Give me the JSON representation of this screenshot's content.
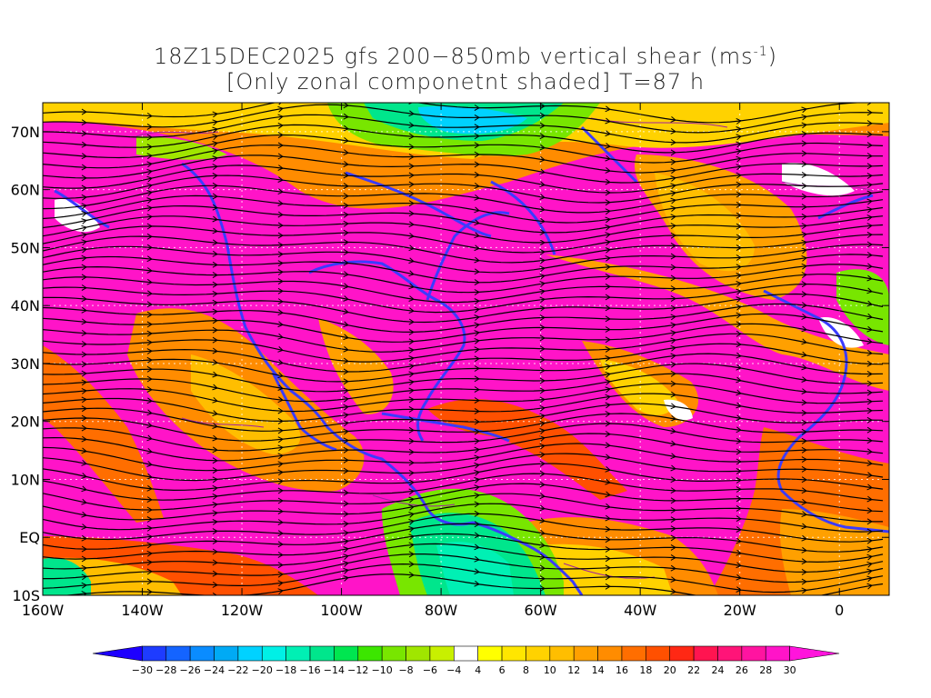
{
  "title": {
    "line1_prefix": "18Z15DEC2025 gfs 200−850mb vertical shear (ms",
    "line1_sup": "-1",
    "line1_suffix": ")",
    "line2": "[Only zonal componetnt shaded] T=87 h"
  },
  "map": {
    "lon_range": [
      -160,
      10
    ],
    "lat_range": [
      -10,
      75
    ],
    "lat_ticks": [
      {
        "value": 70,
        "label": "70N"
      },
      {
        "value": 60,
        "label": "60N"
      },
      {
        "value": 50,
        "label": "50N"
      },
      {
        "value": 40,
        "label": "40N"
      },
      {
        "value": 30,
        "label": "30N"
      },
      {
        "value": 20,
        "label": "20N"
      },
      {
        "value": 10,
        "label": "10N"
      },
      {
        "value": 0,
        "label": "EQ"
      },
      {
        "value": -10,
        "label": "10S"
      }
    ],
    "lon_ticks": [
      {
        "value": -160,
        "label": "160W"
      },
      {
        "value": -140,
        "label": "140W"
      },
      {
        "value": -120,
        "label": "120W"
      },
      {
        "value": -100,
        "label": "100W"
      },
      {
        "value": -80,
        "label": "80W"
      },
      {
        "value": -60,
        "label": "60W"
      },
      {
        "value": -40,
        "label": "40W"
      },
      {
        "value": -20,
        "label": "20W"
      },
      {
        "value": 0,
        "label": "0"
      }
    ],
    "coastline_color": "#3b3bff",
    "contour_color": "#a020a0",
    "streamline_color": "#000000"
  },
  "colorbar": {
    "labels": [
      "-30",
      "-28",
      "-26",
      "-24",
      "-22",
      "-20",
      "-18",
      "-16",
      "-14",
      "-12",
      "-10",
      "-8",
      "-6",
      "-4",
      "4",
      "6",
      "8",
      "10",
      "12",
      "14",
      "16",
      "18",
      "20",
      "22",
      "24",
      "26",
      "28",
      "30"
    ],
    "colors": [
      "#1e00ff",
      "#1e3cff",
      "#1464ff",
      "#0a8cff",
      "#00aaf5",
      "#00d2ff",
      "#00f0e6",
      "#00f0b4",
      "#00e68c",
      "#00e650",
      "#3ce600",
      "#78e600",
      "#a0e600",
      "#c8f000",
      "#ffffff",
      "#ffff00",
      "#ffe600",
      "#ffd200",
      "#ffbe00",
      "#ffa000",
      "#ff8c00",
      "#ff6e00",
      "#ff5000",
      "#ff2814",
      "#ff1450",
      "#ff1478",
      "#ff14a0",
      "#ff14c8",
      "#ff14dc"
    ]
  }
}
